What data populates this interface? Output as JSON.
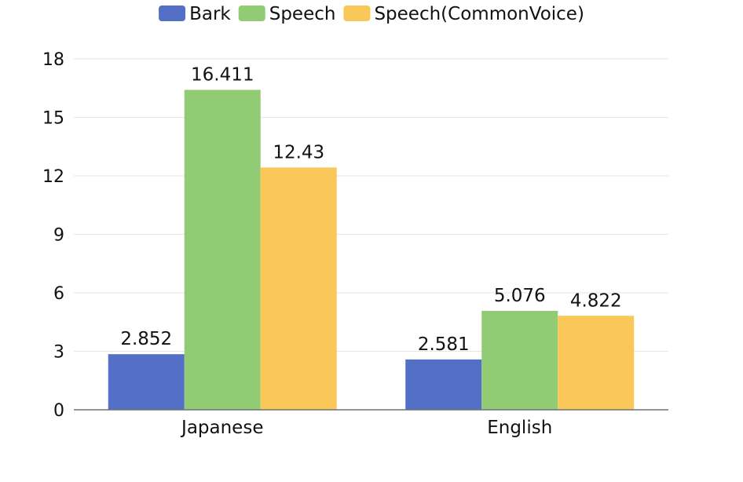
{
  "chart_data": {
    "type": "bar",
    "categories": [
      "Japanese",
      "English"
    ],
    "series": [
      {
        "name": "Bark",
        "values": [
          2.852,
          2.581
        ],
        "color": "#5470c6"
      },
      {
        "name": "Speech",
        "values": [
          16.411,
          5.076
        ],
        "color": "#91cc75"
      },
      {
        "name": "Speech(CommonVoice)",
        "values": [
          12.43,
          4.822
        ],
        "color": "#fac858"
      }
    ],
    "value_labels": [
      [
        "2.852",
        "2.581"
      ],
      [
        "16.411",
        "5.076"
      ],
      [
        "12.43",
        "4.822"
      ]
    ],
    "y_ticks": [
      "0",
      "3",
      "6",
      "9",
      "12",
      "15",
      "18"
    ],
    "ylim": [
      0,
      18
    ],
    "title": "",
    "xlabel": "",
    "ylabel": "",
    "grid": true,
    "legend_position": "top-center",
    "colors": {
      "grid": "#e6e6e6",
      "axis": "#6e7079"
    }
  }
}
